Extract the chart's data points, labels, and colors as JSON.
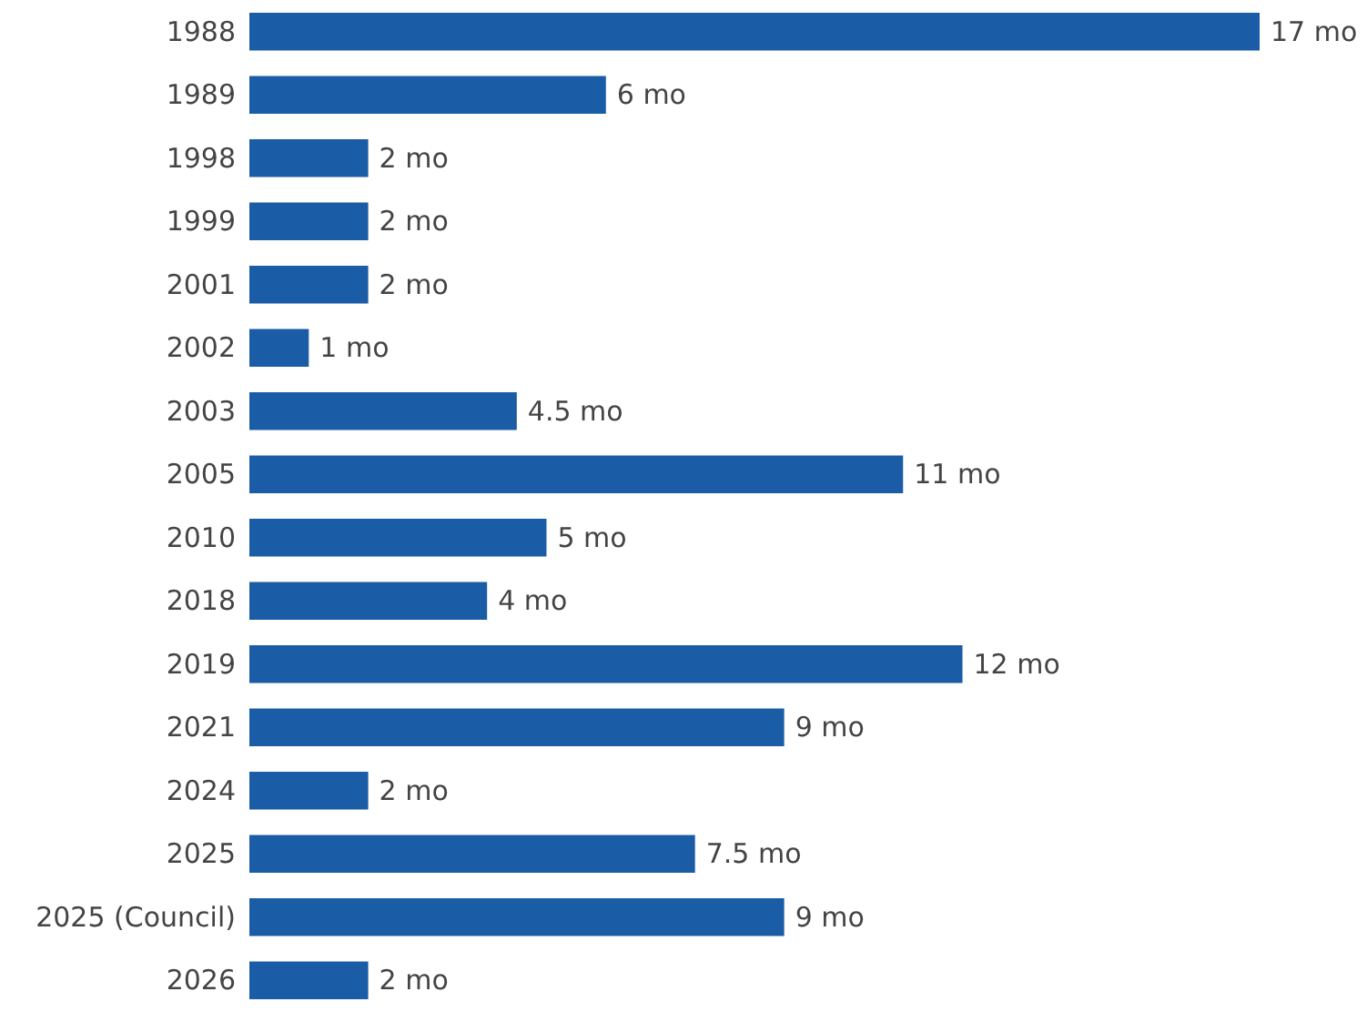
{
  "chart_data": {
    "type": "bar",
    "orientation": "horizontal",
    "color": "#1a5da6",
    "categories": [
      "1988",
      "1989",
      "1998",
      "1999",
      "2001",
      "2002",
      "2003",
      "2005",
      "2010",
      "2018",
      "2019",
      "2021",
      "2024",
      "2025",
      "2025 (Council)",
      "2026"
    ],
    "values": [
      17,
      6,
      2,
      2,
      2,
      1,
      4.5,
      11,
      5,
      4,
      12,
      9,
      2,
      7.5,
      9,
      2
    ],
    "value_labels": [
      "17 mo",
      "6 mo",
      "2 mo",
      "2 mo",
      "2 mo",
      "1 mo",
      "4.5 mo",
      "11 mo",
      "5 mo",
      "4 mo",
      "12 mo",
      "9 mo",
      "2 mo",
      "7.5 mo",
      "9 mo",
      "2 mo"
    ]
  }
}
